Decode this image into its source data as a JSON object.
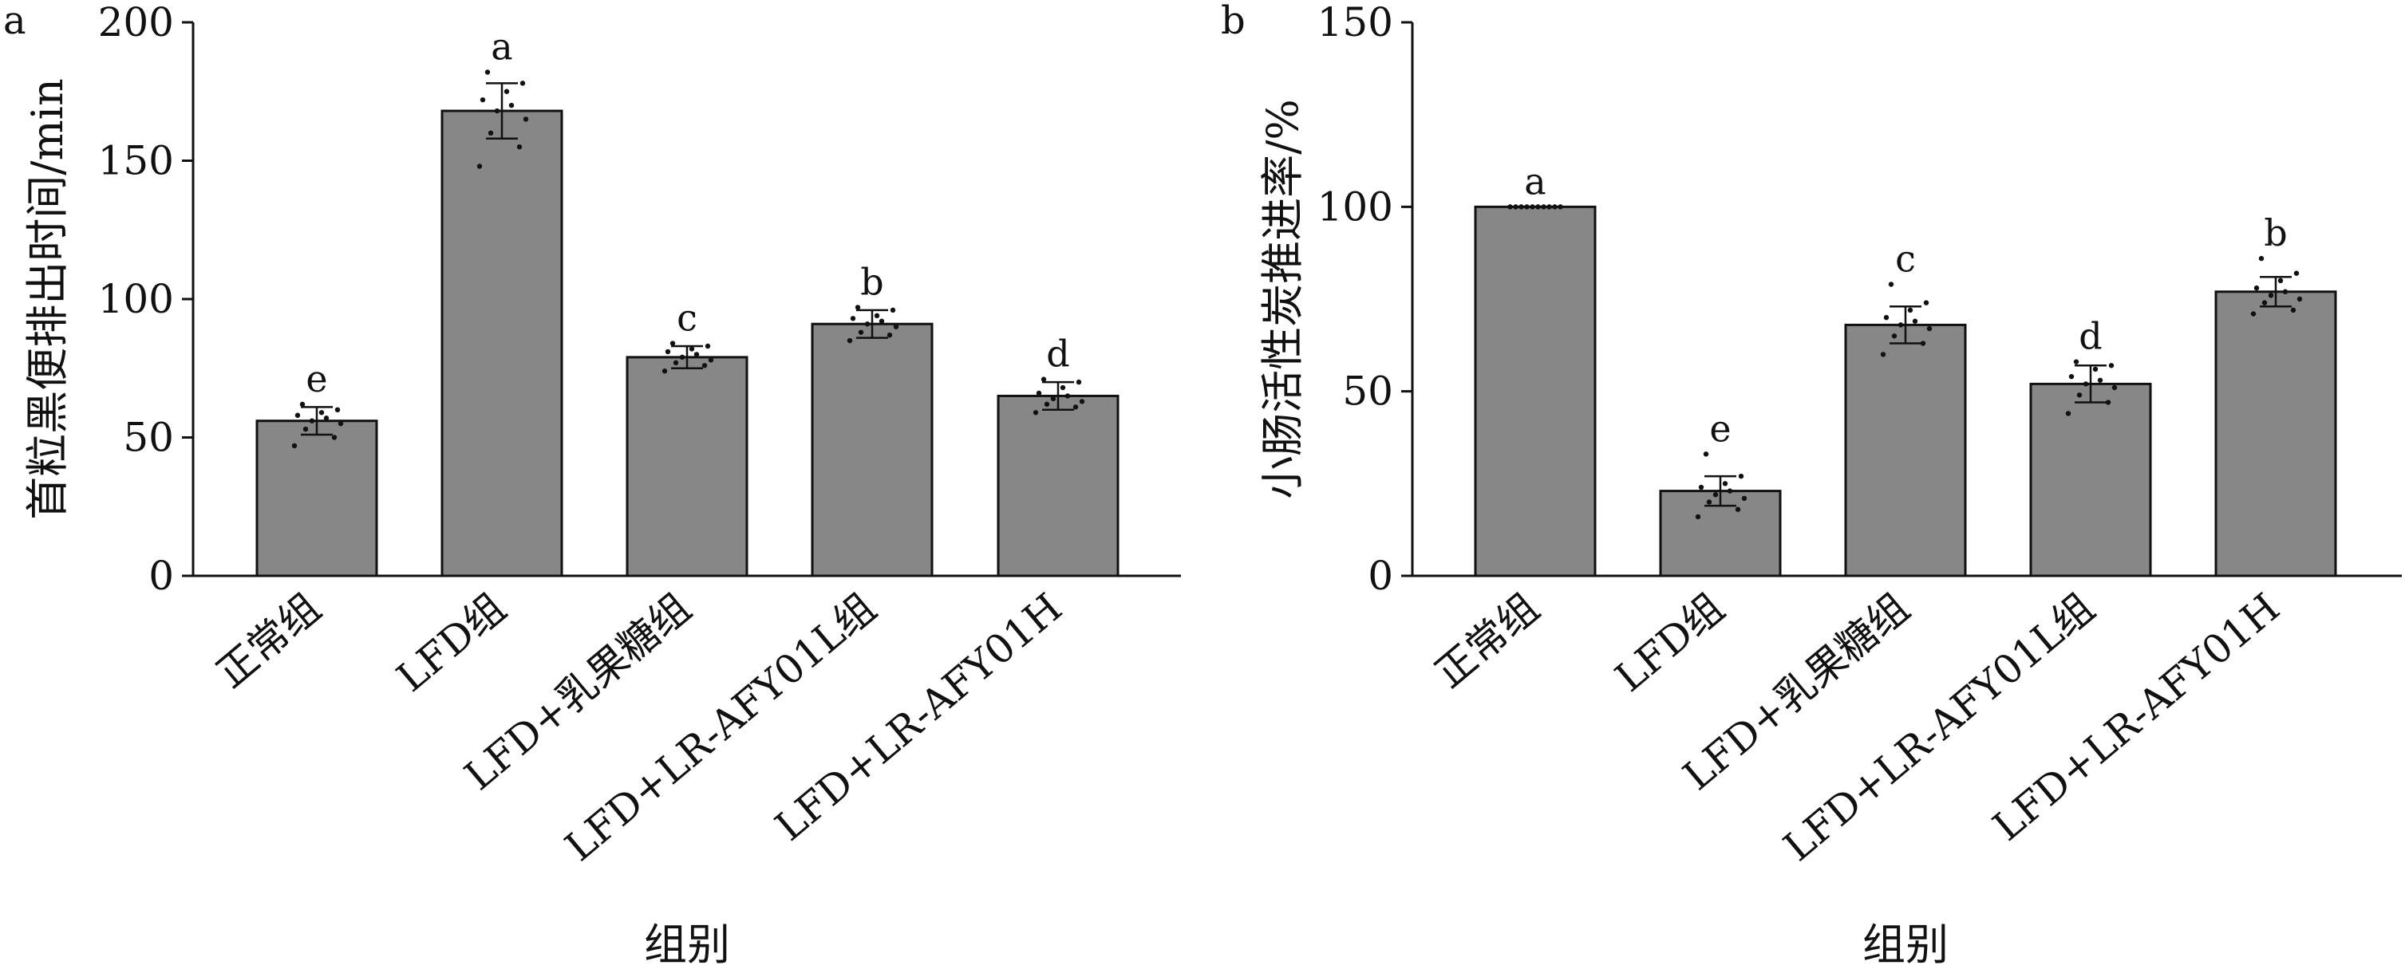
{
  "chart_data": [
    {
      "panel_label": "a",
      "type": "bar",
      "ylabel": "首粒黑便排出时间/min",
      "xlabel": "组别",
      "ylim": [
        0,
        200
      ],
      "yticks": [
        0,
        50,
        100,
        150,
        200
      ],
      "categories": [
        "正常组",
        "LFD组",
        "LFD+乳果糖组",
        "LFD+LR-AFY01L组",
        "LFD+LR-AFY01H"
      ],
      "values": [
        56,
        168,
        79,
        91,
        65
      ],
      "errors": [
        5,
        10,
        4,
        5,
        5
      ],
      "significance": [
        "e",
        "a",
        "c",
        "b",
        "d"
      ],
      "points": [
        [
          47,
          50,
          53,
          55,
          56,
          57,
          58,
          59,
          60,
          62
        ],
        [
          148,
          155,
          160,
          165,
          168,
          170,
          172,
          175,
          178,
          182
        ],
        [
          74,
          76,
          77,
          78,
          79,
          80,
          81,
          82,
          83,
          84
        ],
        [
          85,
          87,
          88,
          90,
          91,
          92,
          93,
          94,
          96,
          97
        ],
        [
          59,
          61,
          62,
          63,
          64,
          65,
          66,
          68,
          70,
          71
        ]
      ]
    },
    {
      "panel_label": "b",
      "type": "bar",
      "ylabel": "小肠活性炭推进率/%",
      "xlabel": "组别",
      "ylim": [
        0,
        150
      ],
      "yticks": [
        0,
        50,
        100,
        150
      ],
      "categories": [
        "正常组",
        "LFD组",
        "LFD+乳果糖组",
        "LFD+LR-AFY01L组",
        "LFD+LR-AFY01H"
      ],
      "values": [
        100,
        23,
        68,
        52,
        77
      ],
      "errors": [
        0,
        4,
        5,
        5,
        4
      ],
      "significance": [
        "a",
        "e",
        "c",
        "d",
        "b"
      ],
      "points": [
        [
          100,
          100,
          100,
          100,
          100,
          100,
          100,
          100,
          100,
          100
        ],
        [
          16,
          18,
          20,
          21,
          22,
          23,
          24,
          25,
          27,
          33
        ],
        [
          60,
          63,
          65,
          67,
          68,
          69,
          70,
          72,
          74,
          79
        ],
        [
          44,
          47,
          49,
          51,
          52,
          53,
          54,
          56,
          57,
          58
        ],
        [
          71,
          72,
          74,
          75,
          76,
          77,
          78,
          80,
          82,
          86
        ]
      ]
    }
  ]
}
